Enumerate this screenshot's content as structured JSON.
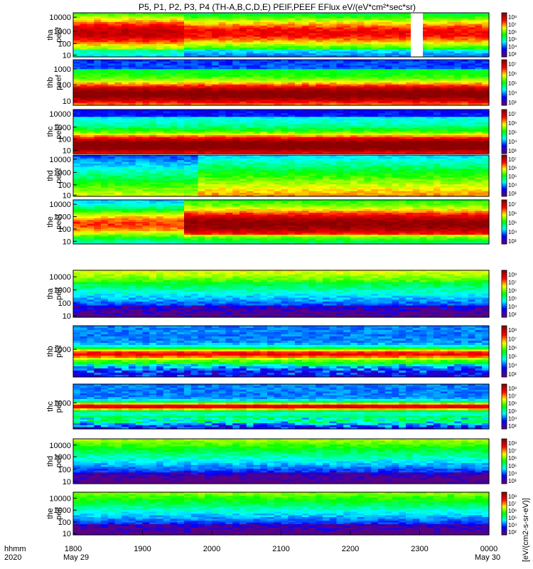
{
  "chart_data": {
    "type": "heatmap",
    "title": "P5, P1, P2, P3, P4 (TH-A,B,C,D,E) PEIF,PEEF EFlux eV/(eV*cm²*sec*sr)",
    "colorbar_label": "[eV/(cm2-s-sr-eV)]",
    "x_axis": {
      "row_labels": [
        "hhmm",
        "2020"
      ],
      "ticks": [
        "1800",
        "1900",
        "2000",
        "2100",
        "2200",
        "2300",
        "0000"
      ],
      "date_labels": [
        "May 29",
        "May 30"
      ],
      "range": [
        "2020-05-29 18:00",
        "2020-05-30 00:00"
      ]
    },
    "log_scale_y": true,
    "colormap": [
      "#5a0082",
      "#0000ff",
      "#00ffff",
      "#00ff00",
      "#ffff00",
      "#ff0000",
      "#8c0000"
    ],
    "panels": [
      {
        "probe": "tha",
        "species": "peef",
        "yticks": [
          "10000",
          "1000",
          "100",
          "10"
        ],
        "cbar_ticks": [
          "10⁸",
          "10⁷",
          "10⁶",
          "10⁵",
          "10⁴",
          "10³"
        ]
      },
      {
        "probe": "thb",
        "species": "peef",
        "yticks": [
          "1000",
          "100",
          "10"
        ],
        "cbar_ticks": [
          "10⁷",
          "10⁶",
          "10⁵",
          "10⁴",
          "10³"
        ]
      },
      {
        "probe": "thc",
        "species": "peef",
        "yticks": [
          "10000",
          "1000",
          "100",
          "10"
        ],
        "cbar_ticks": [
          "10⁷",
          "10⁶",
          "10⁵",
          "10⁴",
          "10³"
        ]
      },
      {
        "probe": "thd",
        "species": "peef",
        "yticks": [
          "10000",
          "1000",
          "100",
          "10"
        ],
        "cbar_ticks": [
          "10⁷",
          "10⁶",
          "10⁵",
          "10⁴",
          "10³"
        ]
      },
      {
        "probe": "the",
        "species": "peef",
        "yticks": [
          "10000",
          "1000",
          "100",
          "10"
        ],
        "cbar_ticks": [
          "10⁷",
          "10⁶",
          "10⁵",
          "10⁴",
          "10³"
        ]
      },
      {
        "probe": "tha",
        "species": "peif",
        "yticks": [
          "10000",
          "1000",
          "100",
          "10"
        ],
        "cbar_ticks": [
          "10⁸",
          "10⁷",
          "10⁶",
          "10⁵",
          "10⁴",
          "10³"
        ]
      },
      {
        "probe": "thb",
        "species": "peif",
        "yticks": [
          "1000"
        ],
        "cbar_ticks": [
          "10⁸",
          "10⁷",
          "10⁶",
          "10⁵",
          "10⁴",
          "10³"
        ]
      },
      {
        "probe": "thc",
        "species": "peif",
        "yticks": [
          "1000"
        ],
        "cbar_ticks": [
          "10⁸",
          "10⁷",
          "10⁶",
          "10⁵",
          "10⁴",
          "10³"
        ]
      },
      {
        "probe": "thd",
        "species": "peif",
        "yticks": [
          "10000",
          "1000",
          "100",
          "10"
        ],
        "cbar_ticks": [
          "10⁸",
          "10⁷",
          "10⁶",
          "10⁵",
          "10⁴",
          "10³"
        ]
      },
      {
        "probe": "the",
        "species": "peif",
        "yticks": [
          "10000",
          "1000",
          "100",
          "10"
        ],
        "cbar_ticks": [
          "10⁸",
          "10⁷",
          "10⁶",
          "10⁵",
          "10⁴",
          "10³"
        ]
      }
    ]
  }
}
